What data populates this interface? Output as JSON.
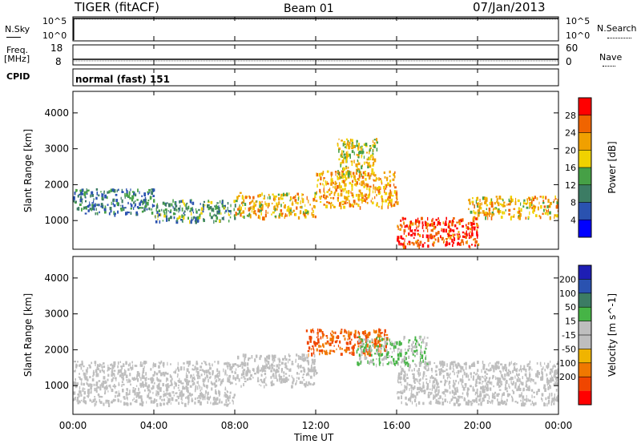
{
  "header": {
    "station": "TIGER (fitACF)",
    "beam": "Beam 01",
    "date": "07/Jan/2013"
  },
  "noise_panel": {
    "left_label": "N.Sky",
    "right_label": "N.Search",
    "left_ticks": [
      "10^5",
      "10^0"
    ],
    "right_ticks": [
      "10^5",
      "10^0"
    ]
  },
  "freq_panel": {
    "left_label": "Freq.",
    "left_unit": "[MHz]",
    "right_label": "Nave",
    "left_ticks": [
      "18",
      "8"
    ],
    "right_ticks": [
      "60",
      "0"
    ]
  },
  "cpid_panel": {
    "label": "CPID",
    "program": "normal (fast) 151"
  },
  "x_axis": {
    "label": "Time UT",
    "ticks": [
      "00:00",
      "04:00",
      "08:00",
      "12:00",
      "16:00",
      "20:00",
      "00:00"
    ]
  },
  "colors": {
    "power_scale": [
      "#0000ff",
      "#2a52b0",
      "#3c7c64",
      "#46a046",
      "#f0d200",
      "#f0a000",
      "#f06400",
      "#ff0000"
    ],
    "velocity_scale": [
      "#1e1eb4",
      "#2a52b0",
      "#3c7c64",
      "#46b446",
      "#bebebe",
      "#bebebe",
      "#f0b400",
      "#f07800",
      "#f04600",
      "#ff0000"
    ]
  },
  "chart_data": [
    {
      "type": "heatmap",
      "title": "",
      "ylabel": "Slant Range [km]",
      "xlabel": "",
      "ylim": [
        200,
        4600
      ],
      "yticks": [
        "1000",
        "2000",
        "3000",
        "4000"
      ],
      "colorbar": {
        "label": "Power [dB]",
        "ticks": [
          "4",
          "8",
          "12",
          "16",
          "20",
          "24",
          "28"
        ],
        "range": [
          0,
          32
        ]
      },
      "bands": [
        {
          "t0": 0.0,
          "t1": 4.0,
          "r0": 1200,
          "r1": 1900,
          "value": 10
        },
        {
          "t0": 4.0,
          "t1": 8.0,
          "r0": 1000,
          "r1": 1600,
          "value": 12
        },
        {
          "t0": 8.0,
          "t1": 12.0,
          "r0": 1100,
          "r1": 1800,
          "value": 20
        },
        {
          "t0": 12.0,
          "t1": 16.0,
          "r0": 1400,
          "r1": 2400,
          "value": 22
        },
        {
          "t0": 13.0,
          "t1": 15.0,
          "r0": 2200,
          "r1": 3300,
          "value": 18
        },
        {
          "t0": 16.0,
          "t1": 20.0,
          "r0": 300,
          "r1": 1100,
          "value": 28
        },
        {
          "t0": 19.5,
          "t1": 24.0,
          "r0": 1100,
          "r1": 1700,
          "value": 20
        }
      ]
    },
    {
      "type": "heatmap",
      "title": "",
      "ylabel": "Slant Range [km]",
      "xlabel": "Time UT",
      "ylim": [
        200,
        4600
      ],
      "yticks": [
        "1000",
        "2000",
        "3000",
        "4000"
      ],
      "colorbar": {
        "label": "Velocity [m s^-1]",
        "ticks": [
          "200",
          "100",
          "50",
          "15",
          "-15",
          "-50",
          "-100",
          "-200"
        ],
        "range": [
          -250,
          250
        ]
      },
      "bands": [
        {
          "t0": 0.0,
          "t1": 8.0,
          "r0": 500,
          "r1": 1700,
          "value": 0
        },
        {
          "t0": 8.0,
          "t1": 12.0,
          "r0": 1000,
          "r1": 1900,
          "value": 0
        },
        {
          "t0": 11.5,
          "t1": 15.5,
          "r0": 1900,
          "r1": 2600,
          "value": -100
        },
        {
          "t0": 14.0,
          "t1": 17.5,
          "r0": 1600,
          "r1": 2400,
          "value": 50
        },
        {
          "t0": 16.0,
          "t1": 24.0,
          "r0": 500,
          "r1": 1700,
          "value": 0
        }
      ]
    }
  ]
}
